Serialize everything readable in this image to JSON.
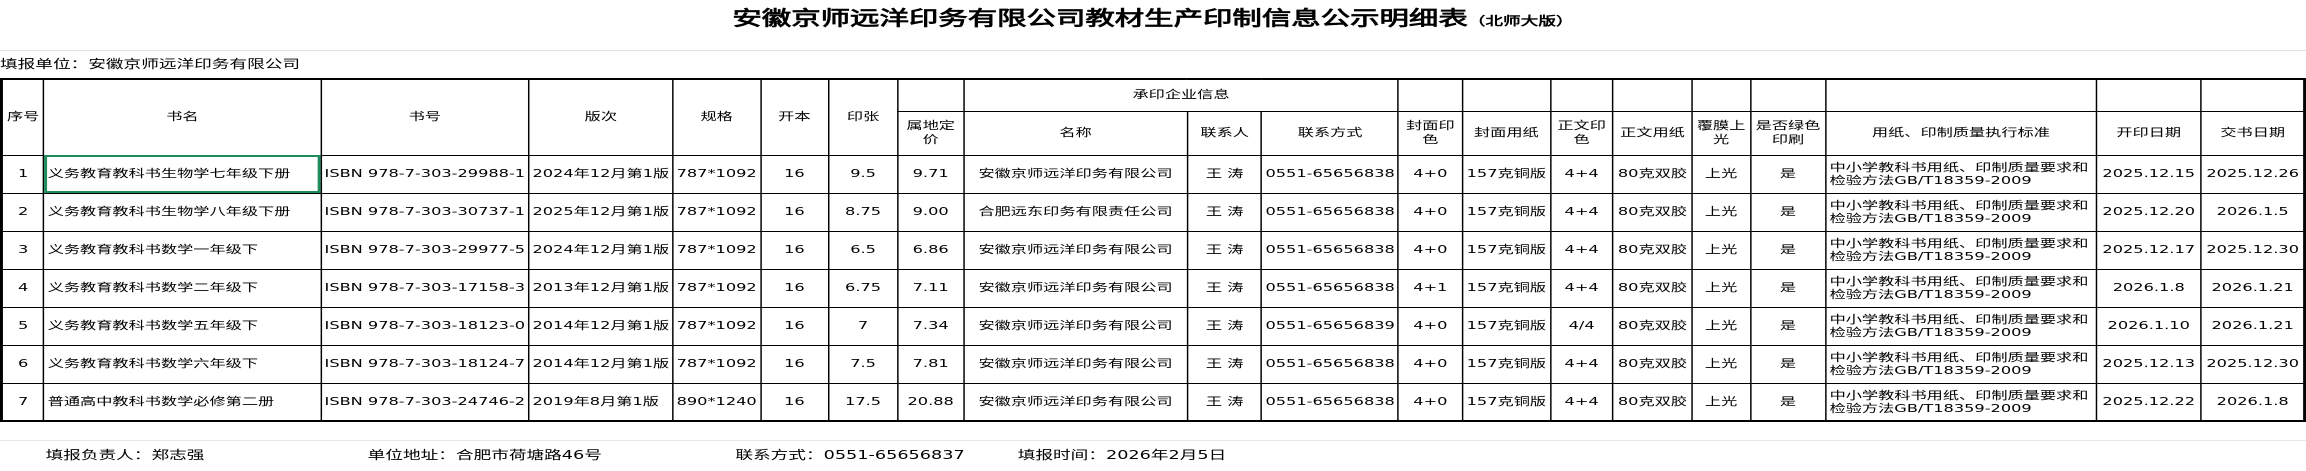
{
  "title": {
    "main": "安徽京师远洋印务有限公司教材生产印制信息公示明细表",
    "sub": "（北师大版）"
  },
  "unit": "填报单位：安徽京师远洋印务有限公司",
  "headers": {
    "seq": "序号",
    "name": "书名",
    "isbn": "书号",
    "edition": "版次",
    "spec": "规格",
    "format": "开本",
    "sheets": "印张",
    "price": "属地定价",
    "printer_group": "承印企业信息",
    "printer": "名称",
    "contact": "联系人",
    "phone": "联系方式",
    "cover_color": "封面印色",
    "cover_paper": "封面用纸",
    "body_color": "正文印色",
    "body_paper": "正文用纸",
    "lamination": "覆膜上光",
    "green": "是否绿色印刷",
    "standard": "用纸、印制质量执行标准",
    "start": "开印日期",
    "deliver": "交书日期"
  },
  "rows": [
    {
      "seq": "1",
      "name": "义务教育教科书生物学七年级下册",
      "isbn": "ISBN 978-7-303-29988-1",
      "edition": "2024年12月第1版",
      "spec": "787*1092",
      "format": "16",
      "sheets": "9.5",
      "price": "9.71",
      "printer": "安徽京师远洋印务有限公司",
      "contact": "王  涛",
      "phone": "0551-65656838",
      "cover_color": "4+0",
      "cover_paper": "157克铜版",
      "body_color": "4+4",
      "body_paper": "80克双胶",
      "lamination": "上光",
      "green": "是",
      "standard": "中小学教科书用纸、印制质量要求和检验方法GB/T18359-2009",
      "start": "2025.12.15",
      "deliver": "2025.12.26"
    },
    {
      "seq": "2",
      "name": "义务教育教科书生物学八年级下册",
      "isbn": "ISBN 978-7-303-30737-1",
      "edition": "2025年12月第1版",
      "spec": "787*1092",
      "format": "16",
      "sheets": "8.75",
      "price": "9.00",
      "printer": "合肥远东印务有限责任公司",
      "contact": "王  涛",
      "phone": "0551-65656838",
      "cover_color": "4+0",
      "cover_paper": "157克铜版",
      "body_color": "4+4",
      "body_paper": "80克双胶",
      "lamination": "上光",
      "green": "是",
      "standard": "中小学教科书用纸、印制质量要求和检验方法GB/T18359-2009",
      "start": "2025.12.20",
      "deliver": "2026.1.5"
    },
    {
      "seq": "3",
      "name": "义务教育教科书数学一年级下",
      "isbn": "ISBN 978-7-303-29977-5",
      "edition": "2024年12月第1版",
      "spec": "787*1092",
      "format": "16",
      "sheets": "6.5",
      "price": "6.86",
      "printer": "安徽京师远洋印务有限公司",
      "contact": "王  涛",
      "phone": "0551-65656838",
      "cover_color": "4+0",
      "cover_paper": "157克铜版",
      "body_color": "4+4",
      "body_paper": "80克双胶",
      "lamination": "上光",
      "green": "是",
      "standard": "中小学教科书用纸、印制质量要求和检验方法GB/T18359-2009",
      "start": "2025.12.17",
      "deliver": "2025.12.30"
    },
    {
      "seq": "4",
      "name": "义务教育教科书数学二年级下",
      "isbn": "ISBN 978-7-303-17158-3",
      "edition": "2013年12月第1版",
      "spec": "787*1092",
      "format": "16",
      "sheets": "6.75",
      "price": "7.11",
      "printer": "安徽京师远洋印务有限公司",
      "contact": "王  涛",
      "phone": "0551-65656838",
      "cover_color": "4+1",
      "cover_paper": "157克铜版",
      "body_color": "4+4",
      "body_paper": "80克双胶",
      "lamination": "上光",
      "green": "是",
      "standard": "中小学教科书用纸、印制质量要求和检验方法GB/T18359-2009",
      "start": "2026.1.8",
      "deliver": "2026.1.21"
    },
    {
      "seq": "5",
      "name": "义务教育教科书数学五年级下",
      "isbn": "ISBN 978-7-303-18123-0",
      "edition": "2014年12月第1版",
      "spec": "787*1092",
      "format": "16",
      "sheets": "7",
      "price": "7.34",
      "printer": "安徽京师远洋印务有限公司",
      "contact": "王  涛",
      "phone": "0551-65656839",
      "cover_color": "4+0",
      "cover_paper": "157克铜版",
      "body_color": "4/4",
      "body_paper": "80克双胶",
      "lamination": "上光",
      "green": "是",
      "standard": "中小学教科书用纸、印制质量要求和检验方法GB/T18359-2009",
      "start": "2026.1.10",
      "deliver": "2026.1.21"
    },
    {
      "seq": "6",
      "name": "义务教育教科书数学六年级下",
      "isbn": "ISBN 978-7-303-18124-7",
      "edition": "2014年12月第1版",
      "spec": "787*1092",
      "format": "16",
      "sheets": "7.5",
      "price": "7.81",
      "printer": "安徽京师远洋印务有限公司",
      "contact": "王  涛",
      "phone": "0551-65656838",
      "cover_color": "4+0",
      "cover_paper": "157克铜版",
      "body_color": "4+4",
      "body_paper": "80克双胶",
      "lamination": "上光",
      "green": "是",
      "standard": "中小学教科书用纸、印制质量要求和检验方法GB/T18359-2009",
      "start": "2025.12.13",
      "deliver": "2025.12.30"
    },
    {
      "seq": "7",
      "name": "普通高中教科书数学必修第二册",
      "isbn": "ISBN 978-7-303-24746-2",
      "edition": "2019年8月第1版",
      "spec": "890*1240",
      "format": "16",
      "sheets": "17.5",
      "price": "20.88",
      "printer": "安徽京师远洋印务有限公司",
      "contact": "王  涛",
      "phone": "0551-65656838",
      "cover_color": "4+0",
      "cover_paper": "157克铜版",
      "body_color": "4+4",
      "body_paper": "80克双胶",
      "lamination": "上光",
      "green": "是",
      "standard": "中小学教科书用纸、印制质量要求和检验方法GB/T18359-2009",
      "start": "2025.12.22",
      "deliver": "2026.1.8"
    }
  ],
  "footer": {
    "responsible": "填报负责人：郑志强",
    "address": "单位地址：合肥市荷塘路46号",
    "phone": "联系方式：0551-65656837",
    "date": "填报时间：2026年2月5日"
  },
  "colors": {
    "selection": "#1e8c5a"
  }
}
